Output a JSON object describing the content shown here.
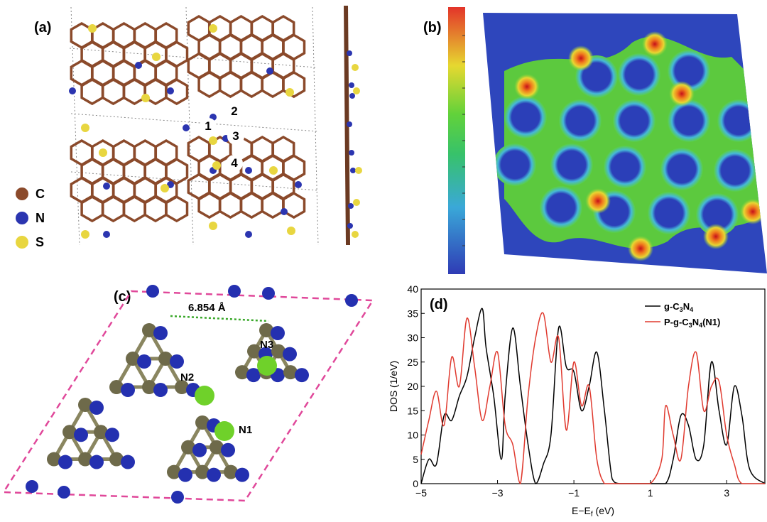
{
  "panel_a": {
    "label": "(a)",
    "legend": [
      {
        "symbol": "C",
        "color": "#8b4a2b"
      },
      {
        "symbol": "N",
        "color": "#2b35b0"
      },
      {
        "symbol": "S",
        "color": "#e8d640"
      }
    ],
    "site_labels": [
      "1",
      "2",
      "3",
      "4"
    ]
  },
  "panel_b": {
    "label": "(b)"
  },
  "panel_c": {
    "label": "(c)",
    "distance": "6.854 Å",
    "atom_labels": [
      "N1",
      "N2",
      "N3"
    ],
    "colors": {
      "carbon": "#6e6a4a",
      "nitrogen": "#2430b0",
      "phosphorus": "#6fd12a",
      "cell": "#e0489a"
    }
  },
  "panel_d": {
    "label": "(d)"
  },
  "chart_data": {
    "type": "line",
    "xlabel": "E−E",
    "xlabel_sub": "f",
    "xlabel_unit": " (eV)",
    "ylabel": "DOS (1/eV)",
    "xlim": [
      -5,
      4
    ],
    "ylim": [
      0,
      40
    ],
    "xticks": [
      -5,
      -3,
      -1,
      1,
      3
    ],
    "yticks": [
      0,
      5,
      10,
      15,
      20,
      25,
      30,
      35,
      40
    ],
    "legend_position": "top-right",
    "series": [
      {
        "name": "g-C3N4",
        "color": "#000000",
        "x": [
          -5.0,
          -4.8,
          -4.6,
          -4.4,
          -4.2,
          -4.0,
          -3.8,
          -3.6,
          -3.4,
          -3.3,
          -3.1,
          -2.9,
          -2.8,
          -2.6,
          -2.4,
          -2.2,
          -2.0,
          -1.8,
          -1.6,
          -1.4,
          -1.2,
          -1.0,
          -0.8,
          -0.6,
          -0.4,
          -0.2,
          0.0,
          0.2,
          0.6,
          1.0,
          1.4,
          1.6,
          1.8,
          2.0,
          2.2,
          2.4,
          2.6,
          2.8,
          3.0,
          3.2,
          3.4,
          3.6,
          4.0
        ],
        "y": [
          0,
          5,
          4,
          14,
          13,
          18,
          22,
          30,
          36,
          28,
          18,
          5,
          18,
          32,
          20,
          8,
          0,
          4,
          10,
          32,
          24,
          23,
          15,
          20,
          27,
          15,
          1,
          0,
          0,
          0,
          0,
          5,
          14,
          12,
          5,
          8,
          25,
          15,
          8,
          20,
          14,
          3,
          0
        ]
      },
      {
        "name": "P-g-C3N4(N1)",
        "color": "#e03a2f",
        "x": [
          -5.0,
          -4.8,
          -4.6,
          -4.4,
          -4.2,
          -4.0,
          -3.8,
          -3.6,
          -3.4,
          -3.2,
          -3.0,
          -2.8,
          -2.6,
          -2.4,
          -2.2,
          -2.0,
          -1.8,
          -1.6,
          -1.4,
          -1.2,
          -1.0,
          -0.8,
          -0.6,
          -0.4,
          -0.2,
          0.0,
          0.2,
          0.6,
          1.0,
          1.3,
          1.4,
          1.6,
          1.8,
          2.0,
          2.2,
          2.4,
          2.6,
          2.8,
          3.0,
          3.2,
          3.4,
          4.0
        ],
        "y": [
          6,
          13,
          19,
          12,
          26,
          20,
          34,
          24,
          13,
          20,
          27,
          12,
          8,
          0,
          18,
          30,
          35,
          25,
          30,
          11,
          25,
          16,
          20,
          5,
          0,
          0,
          0,
          0,
          0,
          5,
          16,
          10,
          5,
          20,
          27,
          15,
          20,
          21,
          10,
          4,
          0,
          0
        ]
      }
    ]
  }
}
